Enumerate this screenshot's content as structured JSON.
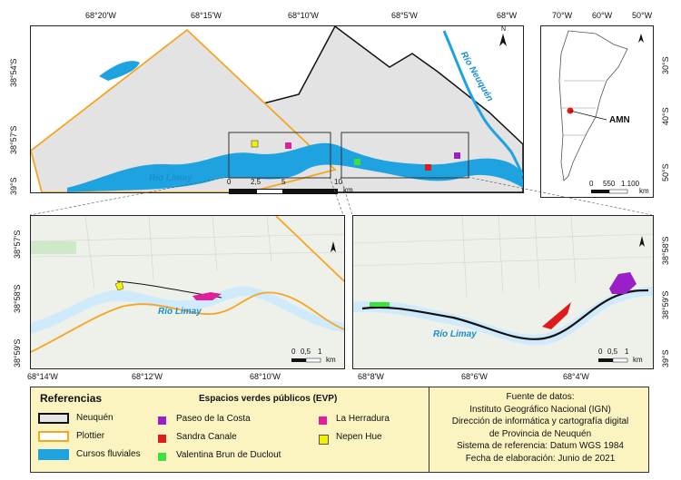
{
  "top_longitude_labels": [
    "68°20'W",
    "68°15'W",
    "68°10'W",
    "68°5'W",
    "68°W"
  ],
  "top_latitude_labels": [
    "38°54'S",
    "38°57'S",
    "39°S"
  ],
  "top_scale": {
    "ticks": [
      "0",
      "2,5",
      "5",
      "10"
    ],
    "unit": "km"
  },
  "inset_longitude_labels": [
    "70°W",
    "60°W",
    "50°W"
  ],
  "inset_latitude_labels": [
    "30°S",
    "40°S",
    "50°S"
  ],
  "inset_label": "AMN",
  "inset_scale": {
    "ticks": [
      "0",
      "550",
      "1.100"
    ],
    "unit": "km"
  },
  "left_detail": {
    "longitude_labels": [
      "68°14'W",
      "68°12'W",
      "68°10'W"
    ],
    "latitude_labels": [
      "38°57'S",
      "38°58'S",
      "38°59'S"
    ],
    "scale": {
      "ticks": [
        "0",
        "0,5",
        "1"
      ],
      "unit": "km"
    },
    "river_label": "Río Limay"
  },
  "right_detail": {
    "longitude_labels": [
      "68°8'W",
      "68°6'W",
      "68°4'W"
    ],
    "latitude_labels": [
      "38°58'S",
      "38°59'S",
      "39°S"
    ],
    "scale": {
      "ticks": [
        "0",
        "0,5",
        "1"
      ],
      "unit": "km"
    },
    "river_label": "Río Limay"
  },
  "top_river_labels": {
    "limay": "Río Limay",
    "neuquen": "Río Neuquén"
  },
  "north_arrow": "N",
  "legend": {
    "title": "Referencias",
    "evp_title": "Espacios verdes públicos (EVP)",
    "items": [
      {
        "label": "Neuquén",
        "color": "#e6e6e6",
        "border": "#111111"
      },
      {
        "label": "Plottier",
        "color": "#ffffff",
        "border": "#f5a623"
      },
      {
        "label": "Cursos fluviales",
        "color": "#1fa2e0",
        "border": "#1fa2e0"
      }
    ],
    "evp": [
      {
        "label": "Paseo de la Costa",
        "color": "#9b1fc9"
      },
      {
        "label": "Sandra Canale",
        "color": "#e01b1b"
      },
      {
        "label": "Valentina Brun de Duclout",
        "color": "#3ee03e"
      },
      {
        "label": "La Herradura",
        "color": "#e0209b"
      },
      {
        "label": "Nepen Hue",
        "color": "#f2f200"
      }
    ],
    "sources": [
      "Fuente de datos:",
      "Instituto Geográfico Nacional (IGN)",
      "Dirección de informática y cartografía digital",
      "de Provincia de Neuquén",
      "Sistema de referencia: Datum WGS 1984",
      "Fecha de elaboración: Junio de 2021"
    ]
  }
}
